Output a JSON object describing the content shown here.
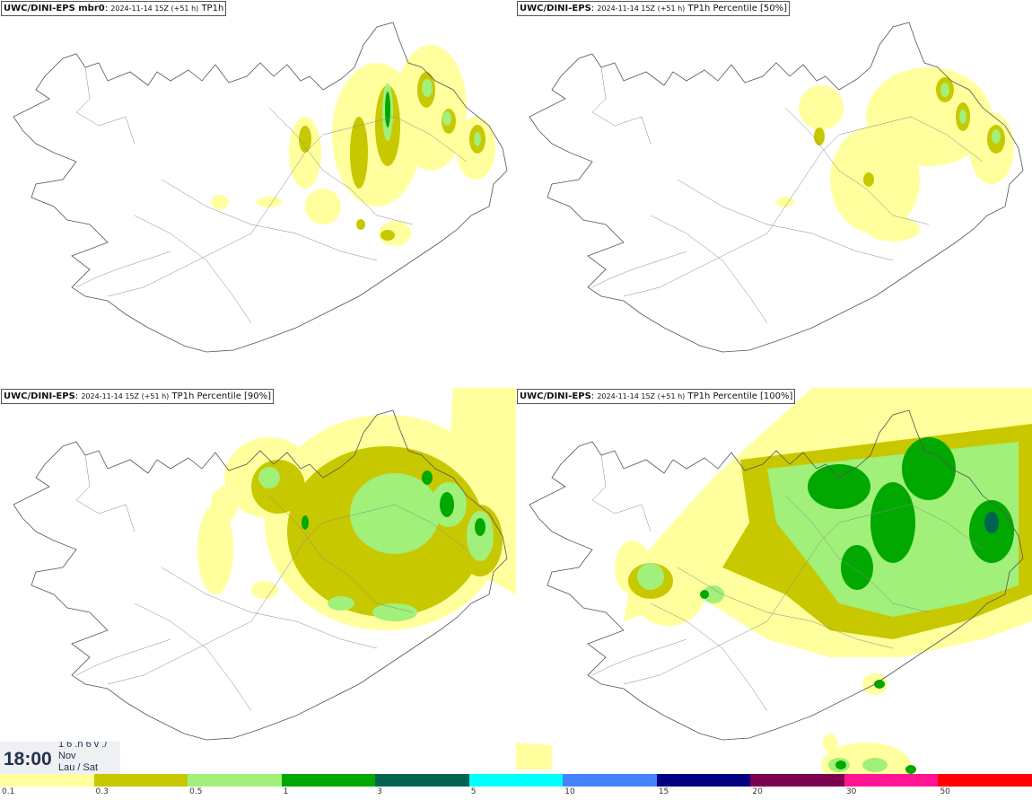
{
  "panels": [
    {
      "model": "UWC/DINI-EPS mbr0",
      "meta": "2024-11-14 15Z (+51 h)",
      "field": "TP1h"
    },
    {
      "model": "UWC/DINI-EPS",
      "meta": "2024-11-14 15Z (+51 h)",
      "field": "TP1h Percentile [50%]"
    },
    {
      "model": "UWC/DINI-EPS",
      "meta": "2024-11-14 15Z (+51 h)",
      "field": "TP1h Percentile [90%]"
    },
    {
      "model": "UWC/DINI-EPS",
      "meta": "2024-11-14 15Z (+51 h)",
      "field": "TP1h Percentile [100%]"
    }
  ],
  "time": {
    "clock": "18:00",
    "date_line1": "1 6 .n 6 v ./",
    "date_line2": "Nov",
    "date_line3": "Lau / Sat"
  },
  "legend": {
    "ticks": [
      "0.1",
      "0.3",
      "0.5",
      "1",
      "3",
      "5",
      "10",
      "15",
      "20",
      "30",
      "50"
    ],
    "colors": [
      "#ffff9e",
      "#c8c800",
      "#a0f07a",
      "#00a800",
      "#006450",
      "#00ffff",
      "#4682ff",
      "#000080",
      "#7d0050",
      "#ff1493",
      "#ff0000"
    ]
  }
}
